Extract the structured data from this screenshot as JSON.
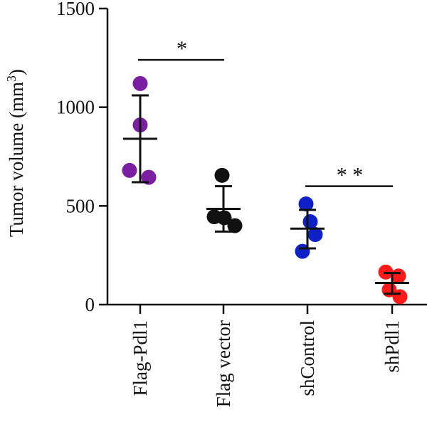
{
  "chart_data": {
    "type": "scatter",
    "ylabel": "Tumor volume (mm",
    "ylabel_superscript": "3",
    "ylabel_suffix": ")",
    "ylim": [
      0,
      1500
    ],
    "yticks": [
      0,
      500,
      1000,
      1500
    ],
    "ytick_labels": [
      "0",
      "500",
      "1000",
      "1500"
    ],
    "categories": [
      "Flag-Pdl1",
      "Flag vector",
      "shControl",
      "shPdl1"
    ],
    "groups": [
      {
        "category": "Flag-Pdl1",
        "color": "#7B1FA2",
        "points": [
          1120,
          910,
          680,
          645
        ],
        "mean": 840,
        "sd_upper": 1060,
        "sd_lower": 620
      },
      {
        "category": "Flag vector",
        "color": "#111111",
        "points": [
          655,
          445,
          440,
          400
        ],
        "mean": 485,
        "sd_upper": 600,
        "sd_lower": 370
      },
      {
        "category": "shControl",
        "color": "#1020C8",
        "points": [
          510,
          420,
          355,
          270
        ],
        "mean": 385,
        "sd_upper": 480,
        "sd_lower": 285
      },
      {
        "category": "shPdl1",
        "color": "#FF1A1A",
        "points": [
          165,
          145,
          75,
          40
        ],
        "mean": 110,
        "sd_upper": 160,
        "sd_lower": 55
      }
    ],
    "significance": [
      {
        "from": "Flag-Pdl1",
        "to": "Flag vector",
        "label": "*",
        "y": 1240
      },
      {
        "from": "shControl",
        "to": "shPdl1",
        "label": "* *",
        "y": 600
      }
    ]
  }
}
